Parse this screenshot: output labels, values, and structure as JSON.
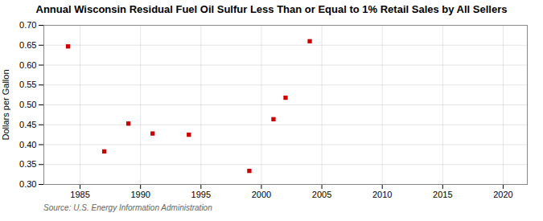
{
  "chart_data": {
    "type": "scatter",
    "title": "Annual Wisconsin Residual Fuel Oil Sulfur Less Than or Equal to 1% Retail Sales by All Sellers",
    "ylabel": "Dollars per Gallon",
    "annotations": [
      "Source: U.S. Energy Information Administration"
    ],
    "x": [
      1984,
      1987,
      1989,
      1991,
      1994,
      1999,
      2001,
      2002,
      2004
    ],
    "values": [
      0.647,
      0.383,
      0.453,
      0.428,
      0.425,
      0.334,
      0.464,
      0.518,
      0.66
    ],
    "color": "#cc0000",
    "marker": "square",
    "xlim": [
      1982,
      2022
    ],
    "ylim": [
      0.3,
      0.7
    ],
    "xticks": [
      1985,
      1990,
      1995,
      2000,
      2005,
      2010,
      2015,
      2020
    ],
    "yticks": [
      {
        "value": 0.3,
        "label": "0.30"
      },
      0.35,
      {
        "value": 0.4,
        "label": "0.40"
      },
      0.45,
      {
        "value": 0.5,
        "label": "0.50"
      },
      0.55,
      {
        "value": 0.6,
        "label": "0.60"
      },
      0.65,
      {
        "value": 0.7,
        "label": "0.70"
      }
    ],
    "grid": true
  }
}
